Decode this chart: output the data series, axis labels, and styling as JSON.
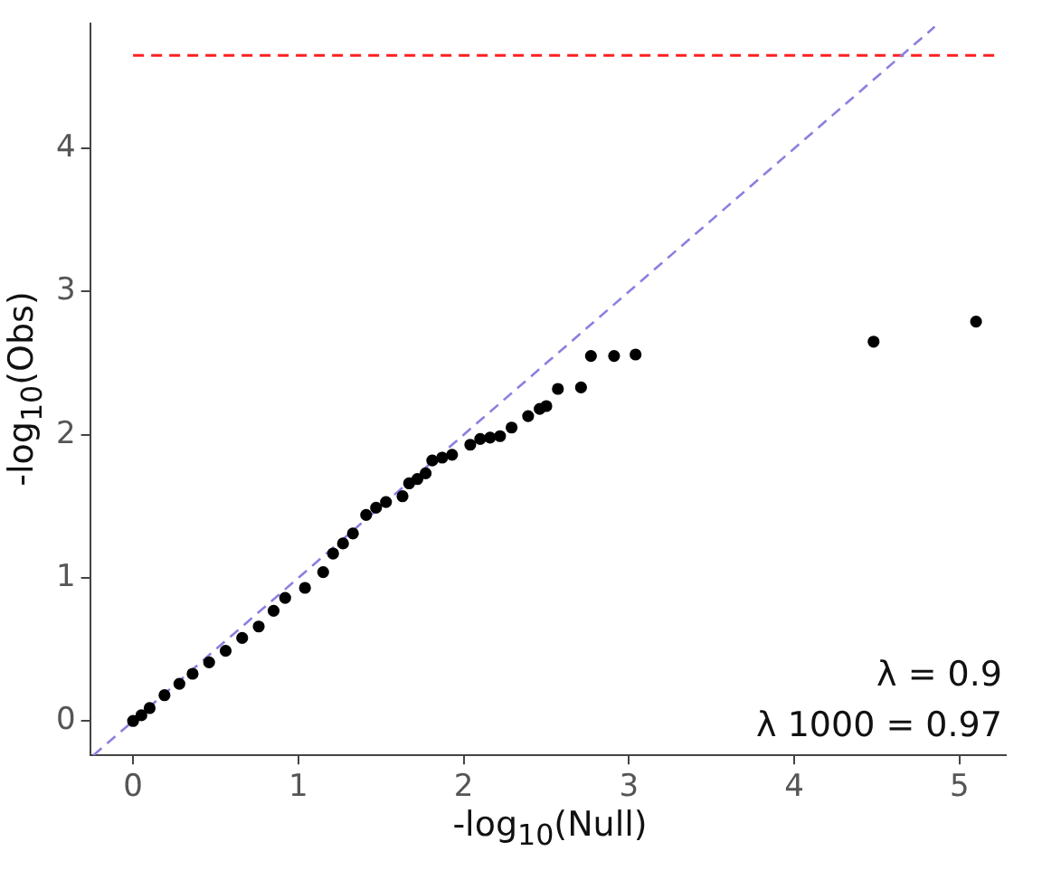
{
  "chart_data": {
    "type": "scatter",
    "xlabel": "-log$_{10}$(Null)",
    "ylabel": "-log$_{10}$(Obs)",
    "xlim": [
      -0.26,
      5.28
    ],
    "ylim": [
      -0.24,
      4.87
    ],
    "xticks": [
      0,
      1,
      2,
      3,
      4,
      5
    ],
    "yticks": [
      0,
      1,
      2,
      3,
      4
    ],
    "grid": false,
    "series": [
      {
        "type": "scatter",
        "color": "#000000",
        "marker": "circle",
        "x": [
          0,
          0.05,
          0.1,
          0.19,
          0.28,
          0.36,
          0.46,
          0.56,
          0.66,
          0.76,
          0.85,
          0.92,
          1.04,
          1.15,
          1.21,
          1.27,
          1.33,
          1.41,
          1.47,
          1.53,
          1.63,
          1.67,
          1.72,
          1.77,
          1.81,
          1.87,
          1.93,
          2.04,
          2.1,
          2.16,
          2.22,
          2.29,
          2.39,
          2.46,
          2.5,
          2.57,
          2.71,
          2.77,
          2.91,
          3.04,
          4.48,
          5.1
        ],
        "values": [
          0,
          0.04,
          0.09,
          0.18,
          0.26,
          0.33,
          0.41,
          0.49,
          0.58,
          0.66,
          0.77,
          0.86,
          0.93,
          1.04,
          1.17,
          1.24,
          1.31,
          1.44,
          1.49,
          1.53,
          1.57,
          1.66,
          1.69,
          1.73,
          1.82,
          1.84,
          1.86,
          1.93,
          1.97,
          1.98,
          1.99,
          2.05,
          2.13,
          2.18,
          2.2,
          2.32,
          2.33,
          2.55,
          2.55,
          2.56,
          2.65,
          2.79
        ]
      },
      {
        "type": "line",
        "color": "#8a80e0",
        "line_style": "dashed",
        "marker": "none",
        "x": [
          -0.24,
          4.85
        ],
        "values": [
          -0.24,
          4.85
        ]
      }
    ],
    "ref_lines": [
      {
        "axis": "y",
        "value": 4.65,
        "color": "#ff2020",
        "line_style": "dashed"
      }
    ],
    "annotations": [
      "λ = 0.9",
      "λ 1000 = 0.97"
    ]
  }
}
